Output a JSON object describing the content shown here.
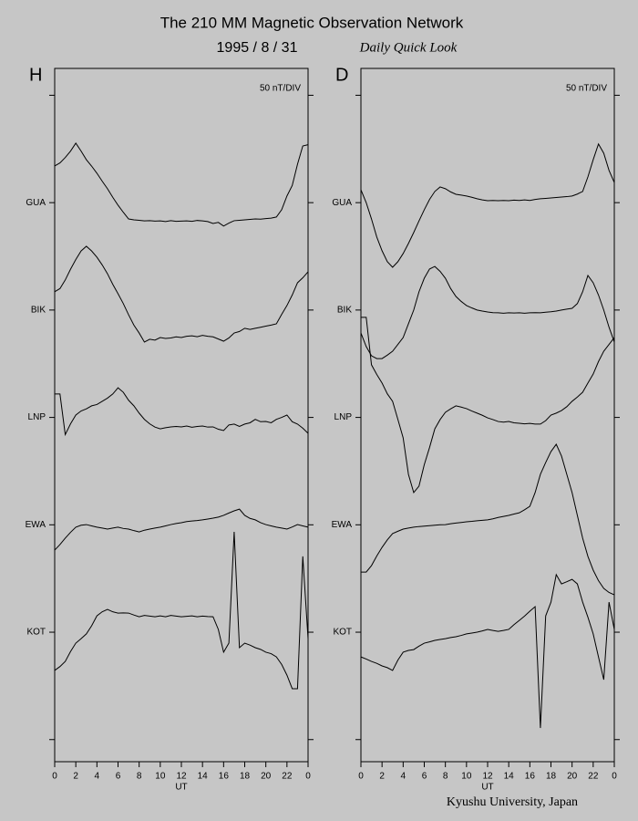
{
  "header": {
    "title": "The 210 MM Magnetic Observation Network",
    "date": "1995 / 8 / 31",
    "subtitle": "Daily Quick Look"
  },
  "footer": "Kyushu University, Japan",
  "chart_data": [
    {
      "type": "line",
      "panel_label": "H",
      "scale_label": "50 nT/DIV",
      "x_label": "UT",
      "x": [
        0,
        0.5,
        1,
        1.5,
        2,
        2.5,
        3,
        3.5,
        4,
        4.5,
        5,
        5.5,
        6,
        6.5,
        7,
        7.5,
        8,
        8.5,
        9,
        9.5,
        10,
        10.5,
        11,
        11.5,
        12,
        12.5,
        13,
        13.5,
        14,
        14.5,
        15,
        15.5,
        16,
        16.5,
        17,
        17.5,
        18,
        18.5,
        19,
        19.5,
        20,
        20.5,
        21,
        21.5,
        22,
        22.5,
        23,
        23.5,
        24
      ],
      "xlim": [
        0,
        24
      ],
      "xticks": [
        0,
        2,
        4,
        6,
        8,
        10,
        12,
        14,
        16,
        18,
        20,
        22,
        {
          "value": 24,
          "label": "0"
        }
      ],
      "ylim": [
        -60.3,
        262.5
      ],
      "yticks": [
        {
          "value": 250,
          "label": null
        },
        {
          "value": 200,
          "label": "GUA"
        },
        {
          "value": 150,
          "label": "BIK"
        },
        {
          "value": 100,
          "label": "LNP"
        },
        {
          "value": 50,
          "label": "EWA"
        },
        {
          "value": 0,
          "label": "KOT"
        },
        {
          "value": -50,
          "label": null
        }
      ],
      "series": [
        {
          "color": "#000000",
          "values": [
            217.1,
            218.5,
            221,
            224,
            227.7,
            224,
            220,
            217,
            213.7,
            210,
            206.5,
            202.5,
            198.8,
            195.5,
            192.4,
            192,
            191.8,
            191.5,
            191.6,
            191.4,
            191.5,
            191.2,
            191.6,
            191.3,
            191.4,
            191.5,
            191.3,
            191.7,
            191.5,
            191.2,
            190.3,
            190.8,
            189.1,
            190.5,
            191.6,
            191.8,
            192,
            192.2,
            192.4,
            192.3,
            192.6,
            192.8,
            193.3,
            196.7,
            203.1,
            208,
            217.9,
            226.4,
            227
          ]
        },
        {
          "color": "#000000",
          "values": [
            158.5,
            160,
            164,
            169,
            173.5,
            177.5,
            179.7,
            177.5,
            174.6,
            171,
            166.9,
            162,
            157.6,
            153,
            147.8,
            143,
            139.3,
            135.1,
            136.4,
            136,
            137.2,
            136.8,
            137,
            137.5,
            137.2,
            137.8,
            138,
            137.6,
            138.2,
            137.8,
            137.5,
            136.5,
            135.5,
            137,
            139.3,
            140,
            141.5,
            141,
            141.5,
            142,
            142.5,
            143,
            143.6,
            148,
            152.1,
            157,
            162.7,
            165,
            167.8
          ]
        },
        {
          "color": "#000000",
          "values": [
            110.9,
            110.9,
            92,
            97,
            101.1,
            103,
            104,
            105.4,
            106,
            107.5,
            109,
            110.9,
            113.8,
            111.7,
            108,
            105.4,
            102,
            99.1,
            97,
            95.5,
            94.7,
            95.2,
            95.6,
            95.8,
            95.6,
            96,
            95.4,
            95.8,
            96,
            95.5,
            95.6,
            94.5,
            93.9,
            96.5,
            96.9,
            95.8,
            96.9,
            97.5,
            99.1,
            98,
            98.1,
            97.5,
            99.1,
            100,
            101.1,
            98,
            96.9,
            95,
            92.6
          ]
        },
        {
          "color": "#000000",
          "values": [
            38.2,
            40.8,
            43.8,
            46.5,
            48.9,
            49.8,
            50.1,
            49.5,
            48.9,
            48.5,
            48,
            48.5,
            48.9,
            48.3,
            48,
            47.3,
            46.7,
            47.5,
            48,
            48.5,
            48.9,
            49.5,
            50.1,
            50.6,
            51,
            51.5,
            51.8,
            52,
            52.3,
            52.7,
            53.1,
            53.6,
            54.4,
            55.5,
            56.5,
            57.3,
            54.4,
            53,
            52.3,
            51,
            50.1,
            49.5,
            48.9,
            48.5,
            48,
            49,
            50.1,
            49.5,
            48.9
          ]
        },
        {
          "color": "#000000",
          "values": [
            -17.8,
            -16,
            -13.6,
            -9,
            -5.1,
            -3,
            -0.8,
            3,
            7.6,
            9.5,
            10.6,
            9.5,
            8.9,
            9,
            8.9,
            8,
            7.2,
            7.8,
            7.5,
            7.2,
            7.6,
            7.2,
            7.8,
            7.5,
            7.2,
            7.4,
            7.6,
            7.2,
            7.5,
            7.3,
            7.2,
            1.3,
            -9.3,
            -5.1,
            46.7,
            -7.2,
            -5.1,
            -6,
            -7.2,
            -8,
            -9.3,
            -10,
            -11.5,
            -15,
            -20,
            -26.3,
            -26.3,
            35.3,
            -3
          ]
        }
      ]
    },
    {
      "type": "line",
      "panel_label": "D",
      "scale_label": "50 nT/DIV",
      "x_label": "UT",
      "x": [
        0,
        0.5,
        1,
        1.5,
        2,
        2.5,
        3,
        3.5,
        4,
        4.5,
        5,
        5.5,
        6,
        6.5,
        7,
        7.5,
        8,
        8.5,
        9,
        9.5,
        10,
        10.5,
        11,
        11.5,
        12,
        12.5,
        13,
        13.5,
        14,
        14.5,
        15,
        15.5,
        16,
        16.5,
        17,
        17.5,
        18,
        18.5,
        19,
        19.5,
        20,
        20.5,
        21,
        21.5,
        22,
        22.5,
        23,
        23.5,
        24
      ],
      "xlim": [
        0,
        24
      ],
      "xticks": [
        0,
        2,
        4,
        6,
        8,
        10,
        12,
        14,
        16,
        18,
        20,
        22,
        {
          "value": 24,
          "label": "0"
        }
      ],
      "ylim": [
        -60.3,
        262.5
      ],
      "yticks": [
        {
          "value": 250,
          "label": null
        },
        {
          "value": 200,
          "label": "GUA"
        },
        {
          "value": 150,
          "label": "BIK"
        },
        {
          "value": 100,
          "label": "LNP"
        },
        {
          "value": 50,
          "label": "EWA"
        },
        {
          "value": 0,
          "label": "KOT"
        },
        {
          "value": -50,
          "label": null
        }
      ],
      "series": [
        {
          "color": "#000000",
          "values": [
            206,
            200,
            192.4,
            184,
            177.6,
            172.5,
            169.9,
            172.5,
            176.3,
            181,
            186.1,
            191.5,
            196.7,
            201.5,
            205.2,
            207.3,
            206.5,
            205,
            203.9,
            203.5,
            203.1,
            202.5,
            201.8,
            201.3,
            200.9,
            201,
            200.9,
            201,
            200.9,
            201.2,
            201,
            201.3,
            201,
            201.5,
            201.8,
            202,
            202.2,
            202.4,
            202.6,
            202.8,
            203.1,
            204,
            205.2,
            212,
            220,
            227.3,
            223,
            215,
            209.4
          ]
        },
        {
          "color": "#000000",
          "values": [
            139.3,
            133,
            128.7,
            127.4,
            127.4,
            129,
            130.8,
            134,
            137.2,
            143.6,
            150,
            158.5,
            164.8,
            169.1,
            170.3,
            168,
            164.8,
            160,
            156.3,
            154,
            152.1,
            151,
            150,
            149.5,
            149.1,
            148.8,
            148.7,
            148.5,
            148.7,
            148.6,
            148.7,
            148.5,
            148.7,
            148.8,
            148.7,
            149,
            149.2,
            149.5,
            150,
            150.4,
            150.8,
            153,
            158.5,
            166.1,
            162.7,
            157,
            150,
            142,
            135.1
          ]
        },
        {
          "color": "#000000",
          "values": [
            146.6,
            146.6,
            124.5,
            120,
            116,
            111,
            107.5,
            99.1,
            90.5,
            73.5,
            65,
            68,
            78,
            86,
            94.7,
            99,
            102.4,
            104,
            105.4,
            104.8,
            104.1,
            103,
            102,
            101,
            99.8,
            99,
            98.1,
            97.8,
            98.1,
            97.5,
            97.3,
            97,
            97.2,
            96.9,
            96.9,
            98.5,
            101.1,
            102,
            103.2,
            105,
            107.5,
            109.5,
            111.7,
            116,
            120.2,
            126,
            130.8,
            134,
            137.2
          ]
        },
        {
          "color": "#000000",
          "values": [
            28,
            28,
            31,
            35.5,
            39.5,
            43,
            45.9,
            47,
            48,
            48.5,
            48.9,
            49.2,
            49.4,
            49.6,
            49.8,
            50,
            50.1,
            50.5,
            50.8,
            51.1,
            51.4,
            51.6,
            51.9,
            52.1,
            52.3,
            52.8,
            53.4,
            53.9,
            54.4,
            55,
            55.6,
            57,
            58.6,
            65,
            73.5,
            79,
            84.1,
            87.5,
            82,
            73.5,
            65,
            54.4,
            43.8,
            35.3,
            28.9,
            24,
            20.4,
            18.5,
            17.4
          ]
        },
        {
          "color": "#000000",
          "values": [
            -11.5,
            -12.5,
            -13.6,
            -14.5,
            -15.7,
            -16.5,
            -17.8,
            -13,
            -9.3,
            -8.5,
            -8.1,
            -6.5,
            -5.1,
            -4.5,
            -3.8,
            -3.4,
            -3,
            -2.5,
            -2.1,
            -1.5,
            -0.8,
            -0.4,
            0,
            0.6,
            1.3,
            0.8,
            0.4,
            0.8,
            1.3,
            3.5,
            5.5,
            7.5,
            9.8,
            11.9,
            -44.6,
            7.6,
            14,
            26.8,
            22.5,
            23.5,
            24.6,
            22.5,
            14,
            7,
            -0.8,
            -11.5,
            -22.1,
            14,
            1.3
          ]
        }
      ]
    }
  ]
}
